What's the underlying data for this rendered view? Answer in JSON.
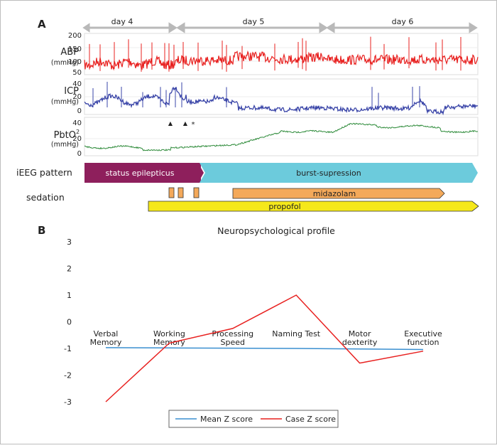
{
  "panel_a": {
    "label": "A",
    "days": [
      "day 4",
      "day 5",
      "day 6"
    ],
    "signals": [
      {
        "name": "ABP",
        "unit": "(mmHg)",
        "ticks": [
          "200",
          "150",
          "100",
          "50"
        ],
        "color": "#e8201f"
      },
      {
        "name": "ICP",
        "unit": "(mmHg)",
        "ticks": [
          "40",
          "20",
          "0"
        ],
        "color": "#3a45a8"
      },
      {
        "name": "PbtO",
        "sup": "2",
        "unit": "(mmHg)",
        "ticks": [
          "40",
          "20",
          "0"
        ],
        "color": "#2e8b3a"
      }
    ],
    "markers": [
      "▲",
      "▲",
      "*"
    ],
    "ieeg_label": "iEEG pattern",
    "ieeg_segments": [
      {
        "text": "status epilepticus",
        "color": "#8e1f5c"
      },
      {
        "text": "burst-supression",
        "color": "#6ccbdc"
      }
    ],
    "sedation_label": "sedation",
    "sedation_bars": [
      {
        "text": "midazolam",
        "color": "#f4a95a"
      },
      {
        "text": "propofol",
        "color": "#f5e81a"
      }
    ]
  },
  "panel_b": {
    "label": "B"
  },
  "chart_data": {
    "type": "line",
    "title": "Neuropsychological profile",
    "categories": [
      [
        "Verbal",
        "Memory"
      ],
      [
        "Working",
        "Memory"
      ],
      [
        "Processing",
        "Speed"
      ],
      [
        "Naming Test"
      ],
      [
        "Motor",
        "dexterity"
      ],
      [
        "Executive",
        "function"
      ]
    ],
    "series": [
      {
        "name": "Mean Z score",
        "color": "#3a8fd0",
        "values": [
          -0.97,
          -0.98,
          -0.99,
          -1.0,
          -1.02,
          -1.04
        ]
      },
      {
        "name": "Case Z score",
        "color": "#e8201f",
        "values": [
          -3.0,
          -0.8,
          -0.25,
          1.0,
          -1.55,
          -1.1
        ]
      }
    ],
    "ylim": [
      -3,
      3
    ],
    "yticks": [
      "3",
      "2",
      "1",
      "0",
      "-1",
      "-2",
      "-3"
    ],
    "legend": "bottom"
  }
}
